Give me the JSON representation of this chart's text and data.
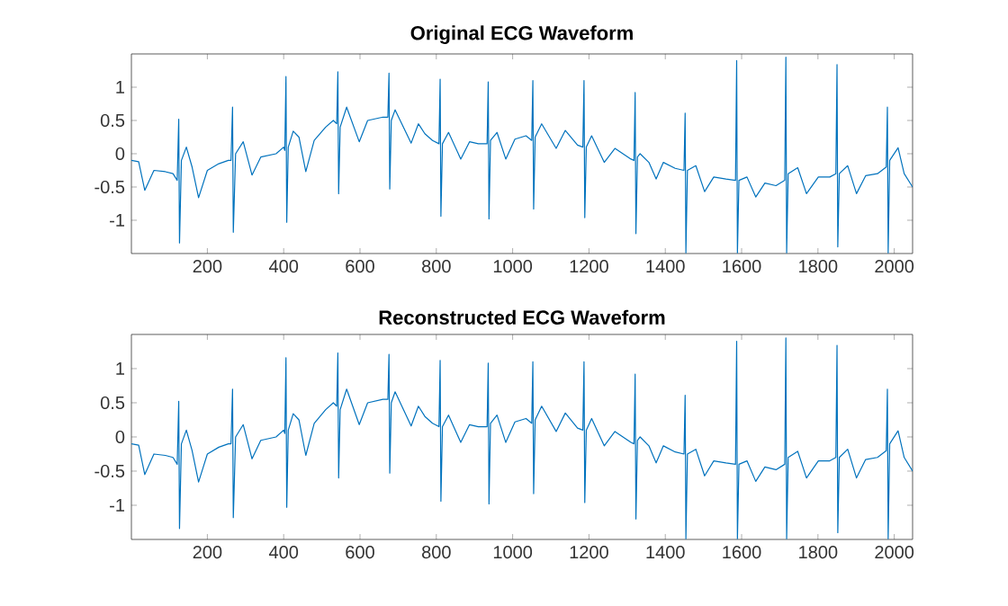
{
  "chart_data": [
    {
      "type": "line",
      "title": "Original ECG Waveform",
      "xlim": [
        1,
        2048
      ],
      "ylim": [
        -1.5,
        1.5
      ],
      "xticks": [
        200,
        400,
        600,
        800,
        1000,
        1200,
        1400,
        1600,
        1800,
        2000
      ],
      "yticks": [
        -1,
        -0.5,
        0,
        0.5,
        1
      ],
      "line_style": "solid",
      "series": [
        {
          "color": "#0072bd",
          "x": [
            1,
            20,
            36,
            60,
            90,
            110,
            121,
            125,
            127,
            132,
            145,
            160,
            177,
            200,
            230,
            255,
            262,
            266,
            268,
            274,
            294,
            317,
            340,
            380,
            400,
            403,
            406,
            408,
            412,
            425,
            440,
            458,
            480,
            510,
            530,
            539,
            542,
            544,
            548,
            565,
            598,
            620,
            660,
            673,
            676,
            678,
            682,
            692,
            734,
            753,
            770,
            790,
            807,
            810,
            812,
            816,
            832,
            864,
            887,
            910,
            933,
            936,
            938,
            942,
            959,
            982,
            1006,
            1035,
            1050,
            1053,
            1055,
            1059,
            1076,
            1114,
            1138,
            1170,
            1184,
            1187,
            1189,
            1193,
            1207,
            1240,
            1268,
            1310,
            1318,
            1321,
            1323,
            1327,
            1334,
            1357,
            1376,
            1395,
            1426,
            1449,
            1452,
            1454,
            1458,
            1480,
            1503,
            1527,
            1559,
            1584,
            1587,
            1589,
            1593,
            1614,
            1637,
            1661,
            1690,
            1713,
            1716,
            1718,
            1722,
            1747,
            1770,
            1801,
            1831,
            1847,
            1850,
            1852,
            1856,
            1878,
            1901,
            1925,
            1956,
            1979,
            1982,
            1984,
            1988,
            2010,
            2026,
            2048
          ],
          "values": [
            -0.1,
            -0.12,
            -0.55,
            -0.25,
            -0.27,
            -0.3,
            -0.4,
            0.52,
            -1.34,
            -0.1,
            0.1,
            -0.2,
            -0.66,
            -0.25,
            -0.15,
            -0.1,
            -0.1,
            0.7,
            -1.18,
            0.0,
            0.18,
            -0.32,
            -0.05,
            0.0,
            0.1,
            0.05,
            1.16,
            -1.03,
            0.1,
            0.34,
            0.25,
            -0.27,
            0.2,
            0.4,
            0.5,
            0.45,
            1.23,
            -0.6,
            0.4,
            0.7,
            0.18,
            0.5,
            0.55,
            0.55,
            1.21,
            -0.53,
            0.5,
            0.66,
            0.16,
            0.45,
            0.3,
            0.2,
            0.15,
            1.12,
            -0.94,
            0.15,
            0.32,
            -0.08,
            0.18,
            0.15,
            0.15,
            1.08,
            -0.98,
            0.2,
            0.32,
            -0.08,
            0.22,
            0.27,
            0.2,
            1.1,
            -0.83,
            0.25,
            0.45,
            0.08,
            0.35,
            0.13,
            0.1,
            1.1,
            -0.96,
            0.1,
            0.27,
            -0.13,
            0.08,
            -0.08,
            -0.1,
            0.92,
            -1.2,
            -0.05,
            0.0,
            -0.13,
            -0.38,
            -0.13,
            -0.22,
            -0.25,
            0.61,
            -1.49,
            -0.25,
            -0.18,
            -0.57,
            -0.35,
            -0.38,
            -0.4,
            1.4,
            -1.49,
            -0.4,
            -0.35,
            -0.65,
            -0.44,
            -0.48,
            -0.4,
            1.45,
            -1.49,
            -0.3,
            -0.21,
            -0.6,
            -0.35,
            -0.35,
            -0.3,
            1.34,
            -1.4,
            -0.3,
            -0.18,
            -0.6,
            -0.33,
            -0.3,
            -0.2,
            0.7,
            -1.49,
            -0.1,
            0.09,
            -0.3,
            -0.5
          ]
        }
      ]
    },
    {
      "type": "line",
      "title": "Reconstructed ECG Waveform",
      "xlim": [
        1,
        2048
      ],
      "ylim": [
        -1.5,
        1.5
      ],
      "xticks": [
        200,
        400,
        600,
        800,
        1000,
        1200,
        1400,
        1600,
        1800,
        2000
      ],
      "yticks": [
        -1,
        -0.5,
        0,
        0.5,
        1
      ],
      "line_style": "solid",
      "series": [
        {
          "color": "#0072bd",
          "x": [
            1,
            20,
            36,
            60,
            90,
            110,
            121,
            125,
            127,
            132,
            145,
            160,
            177,
            200,
            230,
            255,
            262,
            266,
            268,
            274,
            294,
            317,
            340,
            380,
            400,
            403,
            406,
            408,
            412,
            425,
            440,
            458,
            480,
            510,
            530,
            539,
            542,
            544,
            548,
            565,
            598,
            620,
            660,
            673,
            676,
            678,
            682,
            692,
            734,
            753,
            770,
            790,
            807,
            810,
            812,
            816,
            832,
            864,
            887,
            910,
            933,
            936,
            938,
            942,
            959,
            982,
            1006,
            1035,
            1050,
            1053,
            1055,
            1059,
            1076,
            1114,
            1138,
            1170,
            1184,
            1187,
            1189,
            1193,
            1207,
            1240,
            1268,
            1310,
            1318,
            1321,
            1323,
            1327,
            1334,
            1357,
            1376,
            1395,
            1426,
            1449,
            1452,
            1454,
            1458,
            1480,
            1503,
            1527,
            1559,
            1584,
            1587,
            1589,
            1593,
            1614,
            1637,
            1661,
            1690,
            1713,
            1716,
            1718,
            1722,
            1747,
            1770,
            1801,
            1831,
            1847,
            1850,
            1852,
            1856,
            1878,
            1901,
            1925,
            1956,
            1979,
            1982,
            1984,
            1988,
            2010,
            2026,
            2048
          ],
          "values": [
            -0.1,
            -0.12,
            -0.55,
            -0.25,
            -0.27,
            -0.3,
            -0.4,
            0.52,
            -1.34,
            -0.1,
            0.1,
            -0.2,
            -0.66,
            -0.25,
            -0.15,
            -0.1,
            -0.1,
            0.7,
            -1.18,
            0.0,
            0.18,
            -0.32,
            -0.05,
            0.0,
            0.1,
            0.05,
            1.16,
            -1.03,
            0.1,
            0.34,
            0.25,
            -0.27,
            0.2,
            0.4,
            0.5,
            0.45,
            1.23,
            -0.6,
            0.4,
            0.7,
            0.18,
            0.5,
            0.55,
            0.55,
            1.21,
            -0.53,
            0.5,
            0.66,
            0.16,
            0.45,
            0.3,
            0.2,
            0.15,
            1.12,
            -0.94,
            0.15,
            0.32,
            -0.08,
            0.18,
            0.15,
            0.15,
            1.08,
            -0.98,
            0.2,
            0.32,
            -0.08,
            0.22,
            0.27,
            0.2,
            1.1,
            -0.83,
            0.25,
            0.45,
            0.08,
            0.35,
            0.13,
            0.1,
            1.1,
            -0.96,
            0.1,
            0.27,
            -0.13,
            0.08,
            -0.08,
            -0.1,
            0.92,
            -1.2,
            -0.05,
            0.0,
            -0.13,
            -0.38,
            -0.13,
            -0.22,
            -0.25,
            0.61,
            -1.49,
            -0.25,
            -0.18,
            -0.57,
            -0.35,
            -0.38,
            -0.4,
            1.4,
            -1.49,
            -0.4,
            -0.35,
            -0.65,
            -0.44,
            -0.48,
            -0.4,
            1.45,
            -1.49,
            -0.3,
            -0.21,
            -0.6,
            -0.35,
            -0.35,
            -0.3,
            1.34,
            -1.4,
            -0.3,
            -0.18,
            -0.6,
            -0.33,
            -0.3,
            -0.2,
            0.7,
            -1.49,
            -0.1,
            0.09,
            -0.3,
            -0.5
          ]
        }
      ]
    }
  ]
}
